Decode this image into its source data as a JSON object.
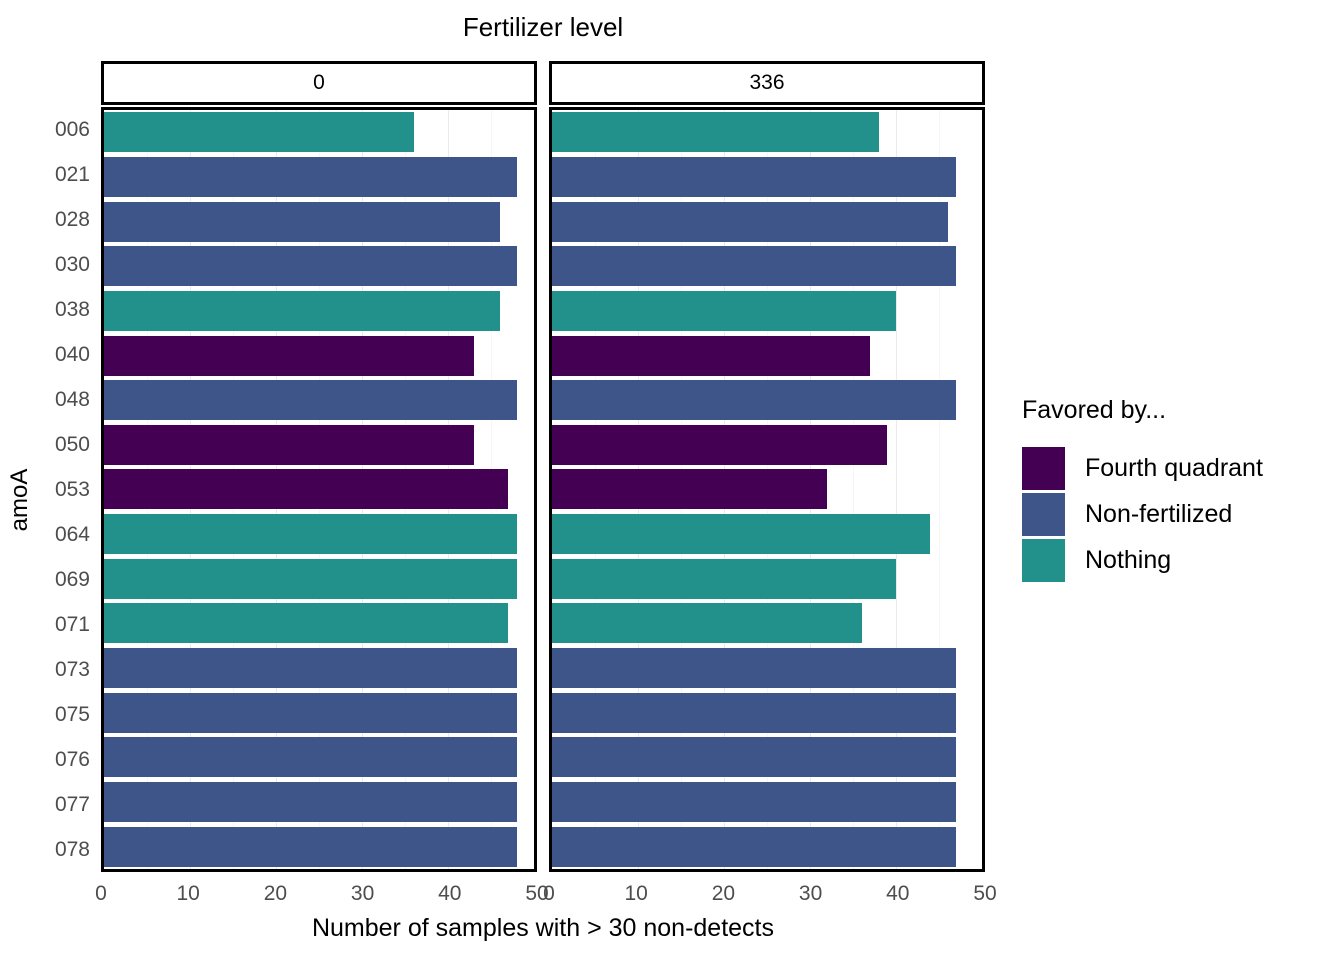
{
  "title": "Fertilizer level",
  "x_axis_title": "Number of samples with > 30 non-detects",
  "y_axis_title": "amoA",
  "legend": {
    "title": "Favored by...",
    "entries": [
      {
        "label": "Fourth quadrant",
        "color": "#440154"
      },
      {
        "label": "Non-fertilized",
        "color": "#3D5588"
      },
      {
        "label": "Nothing",
        "color": "#22918B"
      }
    ]
  },
  "chart_data": {
    "type": "bar",
    "orientation": "horizontal",
    "title": "Fertilizer level",
    "xlabel": "Number of samples with > 30 non-detects",
    "ylabel": "amoA",
    "xlim": [
      0,
      50
    ],
    "x_ticks": [
      0,
      10,
      20,
      30,
      40,
      50
    ],
    "grid": "vertical-major-light",
    "legend_position": "right",
    "facet_variable": "Fertilizer level",
    "categories": [
      "006",
      "021",
      "028",
      "030",
      "038",
      "040",
      "048",
      "050",
      "053",
      "064",
      "069",
      "071",
      "073",
      "075",
      "076",
      "077",
      "078"
    ],
    "category_groups": [
      "Nothing",
      "Non-fertilized",
      "Non-fertilized",
      "Non-fertilized",
      "Nothing",
      "Fourth quadrant",
      "Non-fertilized",
      "Fourth quadrant",
      "Fourth quadrant",
      "Nothing",
      "Nothing",
      "Nothing",
      "Non-fertilized",
      "Non-fertilized",
      "Non-fertilized",
      "Non-fertilized",
      "Non-fertilized"
    ],
    "group_colors": {
      "Fourth quadrant": "#440154",
      "Non-fertilized": "#3D5588",
      "Nothing": "#22918B"
    },
    "facets": [
      {
        "label": "0",
        "values": [
          36,
          48,
          46,
          48,
          46,
          43,
          48,
          43,
          47,
          48,
          48,
          47,
          48,
          48,
          48,
          48,
          48
        ]
      },
      {
        "label": "336",
        "values": [
          38,
          47,
          46,
          47,
          40,
          37,
          47,
          39,
          32,
          44,
          40,
          36,
          47,
          47,
          47,
          47,
          47
        ]
      }
    ]
  },
  "style_colors": {
    "tick_label": "#4d4d4d",
    "panel_border": "#000000",
    "gridline_major": "#ebebeb",
    "background": "#ffffff"
  }
}
